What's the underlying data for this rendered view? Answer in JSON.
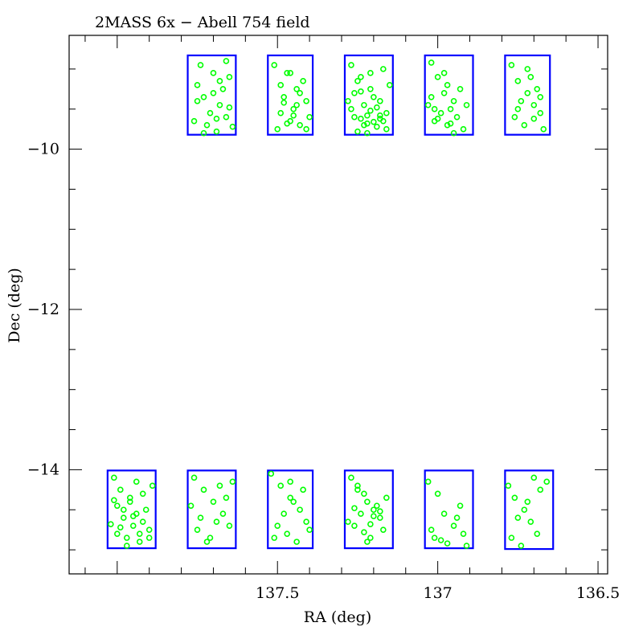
{
  "chart_data": {
    "type": "scatter",
    "title": "2MASS 6x − Abell 754 field",
    "xlabel": "RA (deg)",
    "ylabel": "Dec (deg)",
    "xlim": [
      138.15,
      136.47
    ],
    "ylim": [
      -15.3,
      -8.58
    ],
    "x_axis_reversed": true,
    "x_ticks": [
      137.5,
      137,
      136.5
    ],
    "x_tick_labels": [
      "137.5",
      "137",
      "136.5"
    ],
    "y_ticks": [
      -10,
      -12,
      -14
    ],
    "y_tick_labels": [
      "−10",
      "−12",
      "−14"
    ],
    "grid": false,
    "legend": "none",
    "colors": {
      "boxes": "#0000ff",
      "points": "#00ff00",
      "axes": "#000000"
    },
    "fields": [
      {
        "ra_min": 137.63,
        "ra_max": 137.78,
        "dec_min": -9.82,
        "dec_max": -8.83
      },
      {
        "ra_min": 137.39,
        "ra_max": 137.53,
        "dec_min": -9.82,
        "dec_max": -8.83
      },
      {
        "ra_min": 137.14,
        "ra_max": 137.29,
        "dec_min": -9.82,
        "dec_max": -8.83
      },
      {
        "ra_min": 136.89,
        "ra_max": 137.04,
        "dec_min": -9.82,
        "dec_max": -8.83
      },
      {
        "ra_min": 136.65,
        "ra_max": 136.79,
        "dec_min": -9.82,
        "dec_max": -8.83
      },
      {
        "ra_min": 137.88,
        "ra_max": 138.03,
        "dec_min": -14.98,
        "dec_max": -14.01
      },
      {
        "ra_min": 137.63,
        "ra_max": 137.78,
        "dec_min": -14.98,
        "dec_max": -14.01
      },
      {
        "ra_min": 137.39,
        "ra_max": 137.53,
        "dec_min": -14.98,
        "dec_max": -14.01
      },
      {
        "ra_min": 137.14,
        "ra_max": 137.29,
        "dec_min": -14.98,
        "dec_max": -14.01
      },
      {
        "ra_min": 136.89,
        "ra_max": 137.04,
        "dec_min": -14.98,
        "dec_max": -14.01
      },
      {
        "ra_min": 136.64,
        "ra_max": 136.79,
        "dec_min": -14.99,
        "dec_max": -14.01
      }
    ],
    "series": [
      {
        "points": [
          [
            137.75,
            -9.2
          ],
          [
            137.73,
            -9.35
          ],
          [
            137.7,
            -9.05
          ],
          [
            137.68,
            -9.45
          ],
          [
            137.66,
            -9.6
          ],
          [
            137.72,
            -9.7
          ],
          [
            137.69,
            -9.78
          ],
          [
            137.65,
            -9.1
          ],
          [
            137.74,
            -8.95
          ],
          [
            137.67,
            -9.25
          ],
          [
            137.71,
            -9.55
          ],
          [
            137.64,
            -9.72
          ],
          [
            137.76,
            -9.65
          ],
          [
            137.7,
            -9.3
          ],
          [
            137.66,
            -8.9
          ],
          [
            137.73,
            -9.8
          ],
          [
            137.68,
            -9.15
          ],
          [
            137.75,
            -9.4
          ],
          [
            137.69,
            -9.62
          ],
          [
            137.65,
            -9.48
          ],
          [
            137.47,
            -9.05
          ],
          [
            137.44,
            -9.25
          ],
          [
            137.41,
            -9.4
          ],
          [
            137.49,
            -9.55
          ],
          [
            137.46,
            -9.65
          ],
          [
            137.43,
            -9.7
          ],
          [
            137.5,
            -9.75
          ],
          [
            137.42,
            -9.15
          ],
          [
            137.48,
            -9.35
          ],
          [
            137.45,
            -9.5
          ],
          [
            137.4,
            -9.6
          ],
          [
            137.51,
            -8.95
          ],
          [
            137.44,
            -9.45
          ],
          [
            137.47,
            -9.68
          ],
          [
            137.43,
            -9.3
          ],
          [
            137.49,
            -9.2
          ],
          [
            137.41,
            -9.75
          ],
          [
            137.46,
            -9.05
          ],
          [
            137.45,
            -9.58
          ],
          [
            137.48,
            -9.42
          ],
          [
            137.27,
            -8.95
          ],
          [
            137.24,
            -9.1
          ],
          [
            137.21,
            -9.25
          ],
          [
            137.18,
            -9.4
          ],
          [
            137.16,
            -9.55
          ],
          [
            137.26,
            -9.6
          ],
          [
            137.22,
            -9.68
          ],
          [
            137.19,
            -9.72
          ],
          [
            137.25,
            -9.78
          ],
          [
            137.17,
            -9.65
          ],
          [
            137.23,
            -9.45
          ],
          [
            137.2,
            -9.35
          ],
          [
            137.27,
            -9.5
          ],
          [
            137.15,
            -9.2
          ],
          [
            137.21,
            -9.05
          ],
          [
            137.24,
            -9.62
          ],
          [
            137.18,
            -9.58
          ],
          [
            137.26,
            -9.3
          ],
          [
            137.22,
            -9.8
          ],
          [
            137.17,
            -9.0
          ],
          [
            137.2,
            -9.66
          ],
          [
            137.25,
            -9.15
          ],
          [
            137.19,
            -9.48
          ],
          [
            137.23,
            -9.7
          ],
          [
            137.16,
            -9.75
          ],
          [
            137.28,
            -9.4
          ],
          [
            137.21,
            -9.52
          ],
          [
            137.18,
            -9.62
          ],
          [
            137.24,
            -9.28
          ],
          [
            137.22,
            -9.58
          ],
          [
            137.02,
            -8.92
          ],
          [
            137.0,
            -9.1
          ],
          [
            136.98,
            -9.3
          ],
          [
            136.96,
            -9.5
          ],
          [
            136.94,
            -9.6
          ],
          [
            137.01,
            -9.65
          ],
          [
            136.97,
            -9.7
          ],
          [
            136.95,
            -9.4
          ],
          [
            137.03,
            -9.45
          ],
          [
            136.93,
            -9.25
          ],
          [
            136.99,
            -9.55
          ],
          [
            136.92,
            -9.75
          ],
          [
            137.02,
            -9.35
          ],
          [
            136.97,
            -9.2
          ],
          [
            136.95,
            -9.8
          ],
          [
            137.0,
            -9.62
          ],
          [
            136.91,
            -9.45
          ],
          [
            136.98,
            -9.05
          ],
          [
            137.01,
            -9.5
          ],
          [
            136.96,
            -9.68
          ],
          [
            136.77,
            -8.95
          ],
          [
            136.75,
            -9.15
          ],
          [
            136.72,
            -9.3
          ],
          [
            136.7,
            -9.45
          ],
          [
            136.68,
            -9.55
          ],
          [
            136.76,
            -9.6
          ],
          [
            136.73,
            -9.7
          ],
          [
            136.71,
            -9.1
          ],
          [
            136.69,
            -9.25
          ],
          [
            136.74,
            -9.4
          ],
          [
            136.67,
            -9.75
          ],
          [
            136.72,
            -9.0
          ],
          [
            136.7,
            -9.62
          ],
          [
            136.75,
            -9.5
          ],
          [
            136.68,
            -9.35
          ],
          [
            138.01,
            -14.1
          ],
          [
            137.99,
            -14.25
          ],
          [
            137.96,
            -14.4
          ],
          [
            137.94,
            -14.55
          ],
          [
            137.92,
            -14.65
          ],
          [
            137.9,
            -14.75
          ],
          [
            138.0,
            -14.8
          ],
          [
            137.97,
            -14.85
          ],
          [
            137.95,
            -14.7
          ],
          [
            137.93,
            -14.9
          ],
          [
            137.98,
            -14.6
          ],
          [
            137.91,
            -14.5
          ],
          [
            138.02,
            -14.68
          ],
          [
            137.96,
            -14.35
          ],
          [
            137.89,
            -14.2
          ],
          [
            138.0,
            -14.45
          ],
          [
            137.94,
            -14.15
          ],
          [
            137.97,
            -14.95
          ],
          [
            137.92,
            -14.3
          ],
          [
            137.99,
            -14.72
          ],
          [
            137.9,
            -14.85
          ],
          [
            137.95,
            -14.58
          ],
          [
            138.01,
            -14.38
          ],
          [
            137.93,
            -14.8
          ],
          [
            137.98,
            -14.5
          ],
          [
            137.76,
            -14.1
          ],
          [
            137.73,
            -14.25
          ],
          [
            137.7,
            -14.4
          ],
          [
            137.67,
            -14.55
          ],
          [
            137.65,
            -14.7
          ],
          [
            137.75,
            -14.75
          ],
          [
            137.71,
            -14.85
          ],
          [
            137.68,
            -14.2
          ],
          [
            137.74,
            -14.6
          ],
          [
            137.66,
            -14.35
          ],
          [
            137.72,
            -14.9
          ],
          [
            137.69,
            -14.65
          ],
          [
            137.77,
            -14.45
          ],
          [
            137.64,
            -14.15
          ],
          [
            137.52,
            -14.05
          ],
          [
            137.49,
            -14.2
          ],
          [
            137.46,
            -14.35
          ],
          [
            137.43,
            -14.5
          ],
          [
            137.41,
            -14.65
          ],
          [
            137.5,
            -14.7
          ],
          [
            137.47,
            -14.8
          ],
          [
            137.44,
            -14.9
          ],
          [
            137.42,
            -14.25
          ],
          [
            137.48,
            -14.55
          ],
          [
            137.45,
            -14.4
          ],
          [
            137.51,
            -14.85
          ],
          [
            137.4,
            -14.75
          ],
          [
            137.46,
            -14.15
          ],
          [
            137.27,
            -14.1
          ],
          [
            137.25,
            -14.25
          ],
          [
            137.22,
            -14.4
          ],
          [
            137.2,
            -14.5
          ],
          [
            137.18,
            -14.6
          ],
          [
            137.26,
            -14.7
          ],
          [
            137.23,
            -14.78
          ],
          [
            137.21,
            -14.85
          ],
          [
            137.19,
            -14.45
          ],
          [
            137.24,
            -14.55
          ],
          [
            137.16,
            -14.35
          ],
          [
            137.28,
            -14.65
          ],
          [
            137.22,
            -14.9
          ],
          [
            137.17,
            -14.75
          ],
          [
            137.25,
            -14.2
          ],
          [
            137.2,
            -14.58
          ],
          [
            137.23,
            -14.3
          ],
          [
            137.18,
            -14.52
          ],
          [
            137.26,
            -14.48
          ],
          [
            137.21,
            -14.68
          ],
          [
            137.03,
            -14.15
          ],
          [
            137.0,
            -14.3
          ],
          [
            136.98,
            -14.55
          ],
          [
            136.95,
            -14.7
          ],
          [
            136.92,
            -14.8
          ],
          [
            137.01,
            -14.85
          ],
          [
            136.97,
            -14.92
          ],
          [
            136.94,
            -14.6
          ],
          [
            137.02,
            -14.75
          ],
          [
            136.93,
            -14.45
          ],
          [
            136.99,
            -14.88
          ],
          [
            136.91,
            -14.95
          ],
          [
            136.78,
            -14.2
          ],
          [
            136.76,
            -14.35
          ],
          [
            136.73,
            -14.5
          ],
          [
            136.71,
            -14.65
          ],
          [
            136.69,
            -14.8
          ],
          [
            136.77,
            -14.85
          ],
          [
            136.74,
            -14.95
          ],
          [
            136.7,
            -14.1
          ],
          [
            136.75,
            -14.6
          ],
          [
            136.72,
            -14.4
          ],
          [
            136.68,
            -14.25
          ],
          [
            136.66,
            -14.15
          ]
        ]
      }
    ]
  }
}
